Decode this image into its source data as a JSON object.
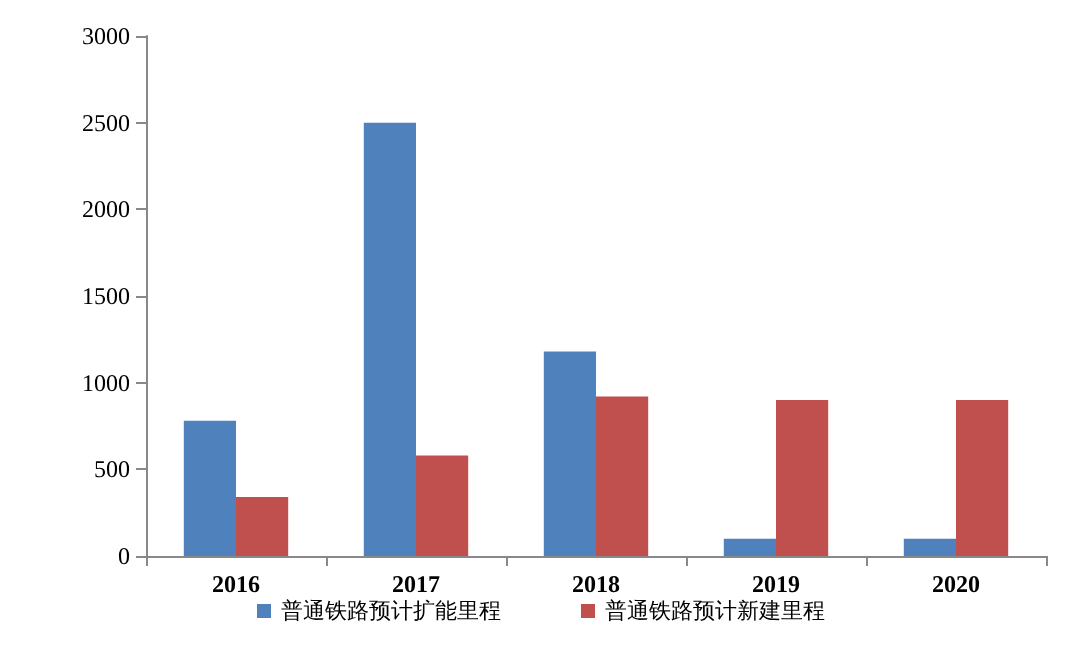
{
  "chart_data": {
    "type": "bar",
    "categories": [
      "2016",
      "2017",
      "2018",
      "2019",
      "2020"
    ],
    "series": [
      {
        "name": "普通铁路预计扩能里程",
        "color": "#4f81bd",
        "values": [
          780,
          2500,
          1180,
          100,
          100
        ]
      },
      {
        "name": "普通铁路预计新建里程",
        "color": "#c0504d",
        "values": [
          340,
          580,
          920,
          900,
          900
        ]
      }
    ],
    "ylim": [
      0,
      3000
    ],
    "yticks": [
      0,
      500,
      1000,
      1500,
      2000,
      2500,
      3000
    ],
    "grid": false,
    "legend": "bottom"
  }
}
